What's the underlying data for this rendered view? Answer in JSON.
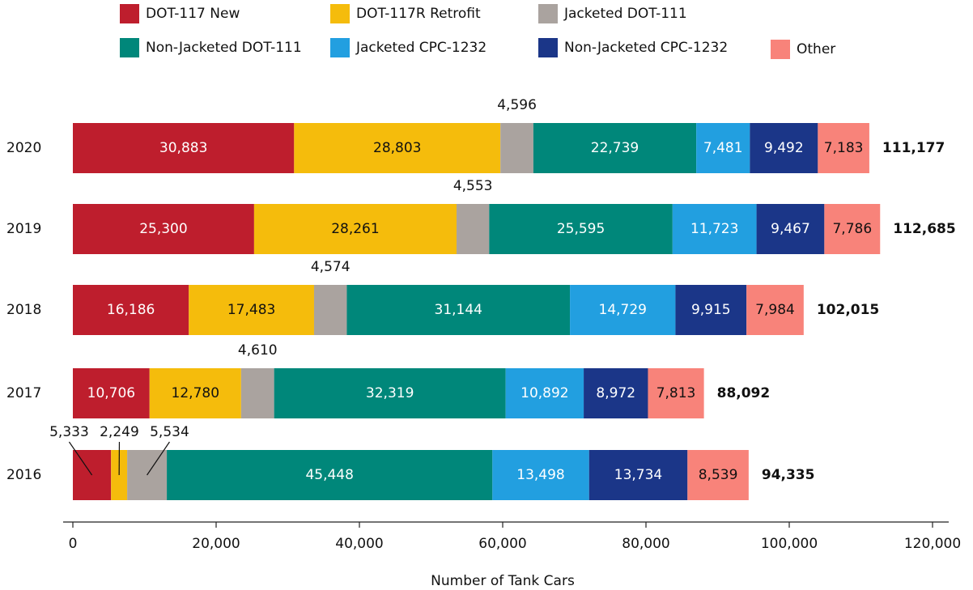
{
  "chart_data": {
    "type": "stacked-bar-horizontal",
    "categories": [
      "2020",
      "2019",
      "2018",
      "2017",
      "2016"
    ],
    "series": [
      {
        "name": "DOT-117 New",
        "color": "#be1e2d",
        "values": [
          30883,
          25300,
          16186,
          10706,
          5333
        ],
        "value_labels": [
          "30,883",
          "25,300",
          "16,186",
          "10,706",
          "5,333"
        ]
      },
      {
        "name": "DOT-117R Retrofit",
        "color": "#f5bc0c",
        "values": [
          28803,
          28261,
          17483,
          12780,
          2249
        ],
        "value_labels": [
          "28,803",
          "28,261",
          "17,483",
          "12,780",
          "2,249"
        ]
      },
      {
        "name": "Jacketed DOT-111",
        "color": "#aaa39f",
        "values": [
          4596,
          4553,
          4574,
          4610,
          5534
        ],
        "value_labels": [
          "4,596",
          "4,553",
          "4,574",
          "4,610",
          "5,534"
        ]
      },
      {
        "name": "Non-Jacketed DOT-111",
        "color": "#00877a",
        "values": [
          22739,
          25595,
          31144,
          32319,
          45448
        ],
        "value_labels": [
          "22,739",
          "25,595",
          "31,144",
          "32,319",
          "45,448"
        ]
      },
      {
        "name": "Jacketed CPC-1232",
        "color": "#229fe0",
        "values": [
          7481,
          11723,
          14729,
          10892,
          13498
        ],
        "value_labels": [
          "7,481",
          "11,723",
          "14,729",
          "10,892",
          "13,498"
        ]
      },
      {
        "name": "Non-Jacketed CPC-1232",
        "color": "#1b3688",
        "values": [
          9492,
          9467,
          9915,
          8972,
          13734
        ],
        "value_labels": [
          "9,492",
          "9,467",
          "9,915",
          "8,972",
          "13,734"
        ]
      },
      {
        "name": "Other",
        "color": "#f8837a",
        "values": [
          7183,
          7786,
          7984,
          7813,
          8539
        ],
        "value_labels": [
          "7,183",
          "7,786",
          "7,984",
          "7,813",
          "8,539"
        ]
      }
    ],
    "totals": {
      "values": [
        111177,
        112685,
        102015,
        88092,
        94335
      ],
      "value_labels": [
        "111,177",
        "112,685",
        "102,015",
        "88,092",
        "94,335"
      ]
    },
    "xlabel": "Number of Tank Cars",
    "xlim": [
      0,
      120000
    ],
    "xticks": [
      0,
      {
        "value": 20000,
        "label": "20,000"
      },
      {
        "value": 40000,
        "label": "40,000"
      },
      {
        "value": 60000,
        "label": "60,000"
      },
      {
        "value": 80000,
        "label": "80,000"
      },
      {
        "value": 100000,
        "label": "100,000"
      },
      {
        "value": 120000,
        "label": "120,000"
      }
    ]
  }
}
